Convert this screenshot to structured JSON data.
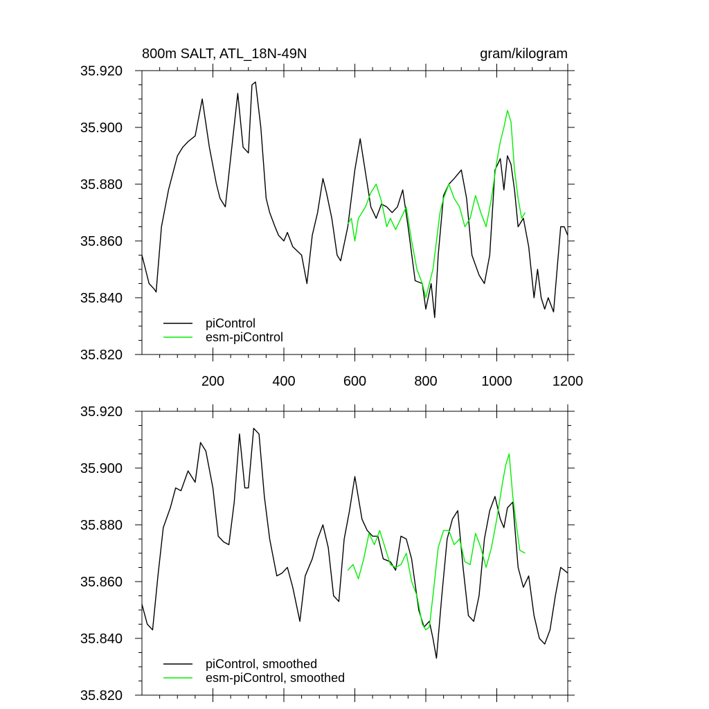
{
  "colors": {
    "piControl": "#000000",
    "esm_piControl": "#00ee00"
  },
  "chart_data": [
    {
      "type": "line",
      "title_left": "800m SALT, ATL_18N-49N",
      "title_right": "gram/kilogram",
      "xlim": [
        0,
        1200
      ],
      "ylim": [
        35.82,
        35.92
      ],
      "xticks": [
        200,
        400,
        600,
        800,
        1000,
        1200
      ],
      "xtick_labels": [
        "200",
        "400",
        "600",
        "800",
        "1000",
        "1200"
      ],
      "yticks": [
        35.82,
        35.84,
        35.86,
        35.88,
        35.9,
        35.92
      ],
      "ytick_labels": [
        "35.820",
        "35.840",
        "35.860",
        "35.880",
        "35.900",
        "35.920"
      ],
      "legend_position": "bottom-left",
      "series": [
        {
          "name": "piControl",
          "color": "#000000",
          "x": [
            0,
            20,
            35,
            40,
            55,
            75,
            100,
            115,
            130,
            150,
            170,
            190,
            210,
            220,
            235,
            255,
            270,
            285,
            300,
            310,
            320,
            335,
            350,
            360,
            375,
            385,
            400,
            410,
            425,
            450,
            465,
            480,
            495,
            510,
            520,
            535,
            550,
            560,
            580,
            600,
            615,
            630,
            645,
            660,
            675,
            690,
            705,
            720,
            735,
            750,
            770,
            790,
            800,
            815,
            825,
            835,
            850,
            865,
            880,
            900,
            915,
            930,
            950,
            965,
            980,
            995,
            1010,
            1020,
            1030,
            1040,
            1050,
            1060,
            1075,
            1090,
            1105,
            1115,
            1125,
            1135,
            1145,
            1160,
            1170,
            1180,
            1190,
            1200
          ],
          "y": [
            35.855,
            35.845,
            35.843,
            35.842,
            35.865,
            35.878,
            35.89,
            35.893,
            35.895,
            35.897,
            35.91,
            35.893,
            35.88,
            35.875,
            35.872,
            35.895,
            35.912,
            35.893,
            35.891,
            35.915,
            35.916,
            35.9,
            35.875,
            35.87,
            35.865,
            35.862,
            35.86,
            35.863,
            35.858,
            35.855,
            35.845,
            35.862,
            35.87,
            35.882,
            35.877,
            35.868,
            35.855,
            35.853,
            35.865,
            35.885,
            35.896,
            35.884,
            35.872,
            35.868,
            35.873,
            35.872,
            35.87,
            35.872,
            35.878,
            35.865,
            35.846,
            35.845,
            35.836,
            35.845,
            35.833,
            35.855,
            35.876,
            35.88,
            35.882,
            35.885,
            35.875,
            35.855,
            35.848,
            35.845,
            35.855,
            35.885,
            35.889,
            35.878,
            35.89,
            35.887,
            35.878,
            35.865,
            35.868,
            35.858,
            35.84,
            35.85,
            35.84,
            35.836,
            35.84,
            35.835,
            35.85,
            35.865,
            35.865,
            35.862
          ]
        },
        {
          "name": "esm-piControl",
          "color": "#00ee00",
          "x": [
            580,
            590,
            600,
            610,
            620,
            630,
            645,
            660,
            675,
            690,
            700,
            715,
            730,
            745,
            760,
            775,
            790,
            800,
            810,
            820,
            830,
            840,
            850,
            865,
            880,
            895,
            910,
            925,
            940,
            955,
            970,
            985,
            1000,
            1010,
            1020,
            1030,
            1040,
            1050,
            1060,
            1070,
            1080
          ],
          "y": [
            35.866,
            35.868,
            35.86,
            35.868,
            35.87,
            35.872,
            35.877,
            35.88,
            35.874,
            35.865,
            35.868,
            35.864,
            35.868,
            35.872,
            35.86,
            35.85,
            35.845,
            35.84,
            35.845,
            35.85,
            35.86,
            35.87,
            35.875,
            35.88,
            35.875,
            35.872,
            35.865,
            35.868,
            35.876,
            35.87,
            35.865,
            35.875,
            35.888,
            35.895,
            35.9,
            35.906,
            35.902,
            35.885,
            35.875,
            35.868,
            35.87
          ]
        }
      ]
    },
    {
      "type": "line",
      "title_left": "",
      "title_right": "",
      "xlim": [
        0,
        1200
      ],
      "ylim": [
        35.82,
        35.92
      ],
      "xticks": [
        200,
        400,
        600,
        800,
        1000,
        1200
      ],
      "xtick_labels": [],
      "yticks": [
        35.82,
        35.84,
        35.86,
        35.88,
        35.9,
        35.92
      ],
      "ytick_labels": [
        "35.820",
        "35.840",
        "35.860",
        "35.880",
        "35.900",
        "35.920"
      ],
      "legend_position": "bottom-left",
      "series": [
        {
          "name": "piControl, smoothed",
          "color": "#000000",
          "x": [
            0,
            15,
            30,
            45,
            60,
            80,
            95,
            110,
            130,
            150,
            165,
            180,
            200,
            215,
            230,
            245,
            260,
            275,
            290,
            300,
            315,
            330,
            345,
            360,
            380,
            395,
            410,
            425,
            445,
            460,
            480,
            495,
            510,
            525,
            540,
            555,
            570,
            585,
            600,
            620,
            635,
            650,
            665,
            680,
            700,
            715,
            730,
            745,
            760,
            780,
            795,
            810,
            820,
            830,
            845,
            860,
            875,
            890,
            905,
            920,
            935,
            950,
            965,
            980,
            995,
            1010,
            1020,
            1030,
            1045,
            1060,
            1075,
            1090,
            1105,
            1120,
            1135,
            1150,
            1165,
            1180,
            1190,
            1200
          ],
          "y": [
            35.852,
            35.845,
            35.843,
            35.862,
            35.879,
            35.886,
            35.893,
            35.892,
            35.899,
            35.895,
            35.909,
            35.906,
            35.893,
            35.876,
            35.874,
            35.873,
            35.888,
            35.912,
            35.893,
            35.893,
            35.914,
            35.912,
            35.89,
            35.875,
            35.862,
            35.863,
            35.865,
            35.858,
            35.846,
            35.862,
            35.868,
            35.875,
            35.88,
            35.872,
            35.855,
            35.853,
            35.875,
            35.885,
            35.897,
            35.882,
            35.878,
            35.876,
            35.876,
            35.868,
            35.867,
            35.864,
            35.876,
            35.875,
            35.868,
            35.85,
            35.844,
            35.846,
            35.84,
            35.833,
            35.855,
            35.875,
            35.882,
            35.885,
            35.865,
            35.848,
            35.846,
            35.855,
            35.875,
            35.885,
            35.89,
            35.882,
            35.879,
            35.886,
            35.888,
            35.865,
            35.858,
            35.862,
            35.848,
            35.84,
            35.838,
            35.843,
            35.855,
            35.865,
            35.864,
            35.863
          ]
        },
        {
          "name": "esm-piControl, smoothed",
          "color": "#00ee00",
          "x": [
            580,
            595,
            610,
            625,
            640,
            655,
            670,
            685,
            700,
            715,
            730,
            745,
            760,
            775,
            790,
            800,
            810,
            820,
            835,
            850,
            865,
            880,
            895,
            910,
            925,
            940,
            955,
            970,
            985,
            1000,
            1015,
            1025,
            1035,
            1045,
            1055,
            1065,
            1080
          ],
          "y": [
            35.864,
            35.866,
            35.861,
            35.868,
            35.877,
            35.873,
            35.878,
            35.872,
            35.866,
            35.865,
            35.866,
            35.87,
            35.86,
            35.855,
            35.845,
            35.843,
            35.844,
            35.855,
            35.872,
            35.878,
            35.878,
            35.873,
            35.875,
            35.867,
            35.866,
            35.877,
            35.872,
            35.865,
            35.872,
            35.882,
            35.894,
            35.901,
            35.905,
            35.89,
            35.88,
            35.871,
            35.87
          ]
        }
      ]
    }
  ]
}
